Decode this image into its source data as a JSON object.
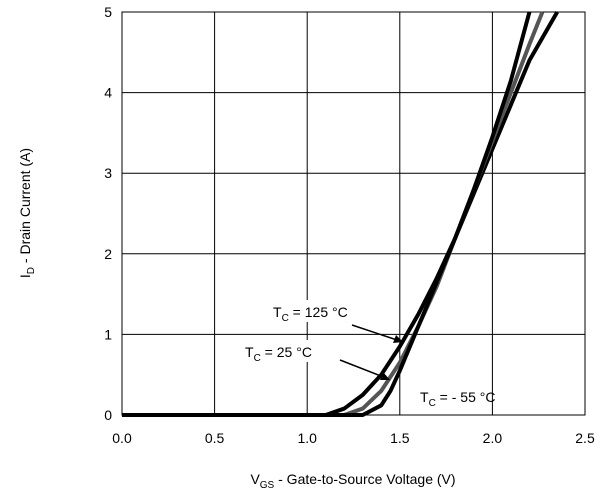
{
  "chart_data": {
    "type": "line",
    "xlabel": {
      "text": "V",
      "subscript": "GS",
      "suffix": " - Gate-to-Source Voltage (V)"
    },
    "ylabel": {
      "text": "I",
      "subscript": "D",
      "suffix": " - Drain Current (A)"
    },
    "xlim": [
      0,
      2.5
    ],
    "ylim": [
      0,
      5
    ],
    "xticks": [
      {
        "value": 0,
        "label": "0.0"
      },
      0.5,
      {
        "value": 1,
        "label": "1.0"
      },
      1.5,
      {
        "value": 2,
        "label": "2.0"
      },
      2.5
    ],
    "yticks": [
      0,
      1,
      2,
      3,
      4,
      5
    ],
    "grid": true,
    "series": [
      {
        "color": "#000000",
        "x": [
          0,
          1.1,
          1.2,
          1.3,
          1.4,
          1.5,
          1.6,
          1.7,
          1.8,
          1.9,
          2.0,
          2.1,
          2.2,
          2.35
        ],
        "values": [
          0,
          0,
          0.08,
          0.25,
          0.5,
          0.85,
          1.25,
          1.7,
          2.2,
          2.75,
          3.3,
          3.85,
          4.4,
          5
        ]
      },
      {
        "color": "#555555",
        "x": [
          0,
          1.2,
          1.3,
          1.4,
          1.5,
          1.6,
          1.7,
          1.8,
          1.9,
          2.0,
          2.1,
          2.2,
          2.27
        ],
        "values": [
          0,
          0,
          0.08,
          0.3,
          0.65,
          1.1,
          1.6,
          2.2,
          2.8,
          3.4,
          4.0,
          4.6,
          5
        ]
      },
      {
        "color": "#000000",
        "x": [
          0,
          1.3,
          1.4,
          1.45,
          1.5,
          1.6,
          1.7,
          1.8,
          1.9,
          2.0,
          2.1,
          2.2
        ],
        "values": [
          0,
          0,
          0.12,
          0.3,
          0.55,
          1.1,
          1.65,
          2.2,
          2.8,
          3.45,
          4.15,
          5
        ]
      }
    ],
    "annotations": [
      {
        "text": "T",
        "subscript": "C",
        "suffix": " = 125 °C"
      },
      {
        "text": "T",
        "subscript": "C",
        "suffix": " = 25 °C"
      },
      {
        "text": "T",
        "subscript": "C",
        "suffix": " = - 55 °C"
      }
    ]
  }
}
